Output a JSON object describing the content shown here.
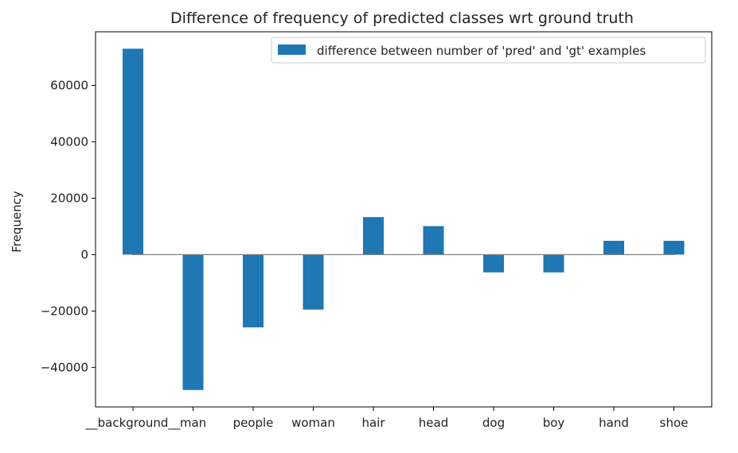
{
  "chart_data": {
    "type": "bar",
    "title": "Difference of frequency of predicted classes wrt ground truth",
    "xlabel": "",
    "ylabel": "Frequency",
    "categories": [
      "__background__",
      "man",
      "people",
      "woman",
      "hair",
      "head",
      "dog",
      "boy",
      "hand",
      "shoe"
    ],
    "series": [
      {
        "name": "difference between number of 'pred' and 'gt' examples",
        "values": [
          73000,
          -48000,
          -25800,
          -19500,
          13300,
          10100,
          -6300,
          -6300,
          4900,
          4900
        ],
        "color": "#1f77b4"
      }
    ],
    "ylim": [
      -54000,
      79000
    ],
    "yticks": [
      -40000,
      -20000,
      0,
      20000,
      40000,
      60000
    ],
    "ytick_labels": [
      "−40000",
      "−20000",
      "0",
      "20000",
      "40000",
      "60000"
    ],
    "legend_position": "upper-right",
    "grid": false
  }
}
